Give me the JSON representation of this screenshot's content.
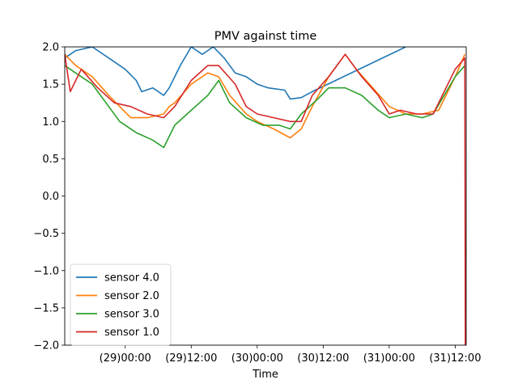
{
  "chart_data": {
    "type": "line",
    "title": "PMV against  time",
    "xlabel": "Time",
    "ylabel": "",
    "ylim": [
      -2.0,
      2.0
    ],
    "xlim": [
      "2023-01-28T13:00",
      "2023-01-31T14:00"
    ],
    "x_tick_labels": [
      "(29)00:00",
      "(29)12:00",
      "(30)00:00",
      "(30)12:00",
      "(31)00:00",
      "(31)12:00"
    ],
    "x_ticks": [
      "2023-01-29T00:00",
      "2023-01-29T12:00",
      "2023-01-30T00:00",
      "2023-01-30T12:00",
      "2023-01-31T00:00",
      "2023-01-31T12:00"
    ],
    "y_tick_labels": [
      "2.0",
      "1.5",
      "1.0",
      "0.5",
      "0.0",
      "−0.5",
      "−1.0",
      "−1.5",
      "−2.0"
    ],
    "y_ticks": [
      2.0,
      1.5,
      1.0,
      0.5,
      0.0,
      -0.5,
      -1.0,
      -1.5,
      -2.0
    ],
    "grid": false,
    "legend_position": "lower-left",
    "series": [
      {
        "name": "sensor 4.0",
        "color": "#1f77b4",
        "x": [
          "2023-01-28T13:00",
          "2023-01-28T15:00",
          "2023-01-28T18:00",
          "2023-01-28T21:00",
          "2023-01-29T00:00",
          "2023-01-29T02:00",
          "2023-01-29T03:00",
          "2023-01-29T05:00",
          "2023-01-29T07:00",
          "2023-01-29T08:00",
          "2023-01-29T10:00",
          "2023-01-29T12:00",
          "2023-01-29T14:00",
          "2023-01-29T16:00",
          "2023-01-29T18:00",
          "2023-01-29T20:00",
          "2023-01-29T22:00",
          "2023-01-30T00:00",
          "2023-01-30T02:00",
          "2023-01-30T05:00",
          "2023-01-30T06:00",
          "2023-01-30T08:00",
          "2023-01-30T10:00",
          "2023-01-31T03:00"
        ],
        "y": [
          1.85,
          1.95,
          2.0,
          1.85,
          1.7,
          1.55,
          1.4,
          1.45,
          1.35,
          1.45,
          1.75,
          2.0,
          1.9,
          2.0,
          1.85,
          1.65,
          1.6,
          1.5,
          1.45,
          1.42,
          1.3,
          1.32,
          1.4,
          2.0
        ]
      },
      {
        "name": "sensor 2.0",
        "color": "#ff7f0e",
        "x": [
          "2023-01-28T13:00",
          "2023-01-28T15:00",
          "2023-01-28T18:00",
          "2023-01-28T21:00",
          "2023-01-28T23:00",
          "2023-01-29T01:00",
          "2023-01-29T04:00",
          "2023-01-29T07:00",
          "2023-01-29T08:00",
          "2023-01-29T09:00",
          "2023-01-29T12:00",
          "2023-01-29T15:00",
          "2023-01-29T17:00",
          "2023-01-29T19:00",
          "2023-01-29T22:00",
          "2023-01-30T00:00",
          "2023-01-30T03:00",
          "2023-01-30T06:00",
          "2023-01-30T08:00",
          "2023-01-30T10:00",
          "2023-01-30T13:00",
          "2023-01-30T16:00",
          "2023-01-30T18:00",
          "2023-01-30T21:00",
          "2023-01-31T00:00",
          "2023-01-31T03:00",
          "2023-01-31T06:00",
          "2023-01-31T09:00",
          "2023-01-31T12:00",
          "2023-01-31T13:45"
        ],
        "y": [
          1.9,
          1.75,
          1.6,
          1.35,
          1.2,
          1.05,
          1.05,
          1.1,
          1.2,
          1.25,
          1.5,
          1.65,
          1.6,
          1.35,
          1.1,
          1.0,
          0.9,
          0.78,
          0.9,
          1.2,
          1.6,
          1.9,
          1.7,
          1.45,
          1.2,
          1.1,
          1.1,
          1.15,
          1.6,
          1.9
        ]
      },
      {
        "name": "sensor 3.0",
        "color": "#2ca02c",
        "x": [
          "2023-01-28T13:00",
          "2023-01-28T15:00",
          "2023-01-28T18:00",
          "2023-01-28T20:00",
          "2023-01-28T23:00",
          "2023-01-29T02:00",
          "2023-01-29T05:00",
          "2023-01-29T07:00",
          "2023-01-29T09:00",
          "2023-01-29T12:00",
          "2023-01-29T15:00",
          "2023-01-29T17:00",
          "2023-01-29T19:00",
          "2023-01-29T22:00",
          "2023-01-30T01:00",
          "2023-01-30T04:00",
          "2023-01-30T06:00",
          "2023-01-30T08:00",
          "2023-01-30T11:00",
          "2023-01-30T13:00",
          "2023-01-30T16:00",
          "2023-01-30T19:00",
          "2023-01-30T22:00",
          "2023-01-31T00:00",
          "2023-01-31T03:00",
          "2023-01-31T06:00",
          "2023-01-31T08:00",
          "2023-01-31T10:00",
          "2023-01-31T12:00",
          "2023-01-31T13:45"
        ],
        "y": [
          1.75,
          1.65,
          1.5,
          1.3,
          1.0,
          0.85,
          0.75,
          0.65,
          0.95,
          1.15,
          1.35,
          1.55,
          1.25,
          1.05,
          0.95,
          0.95,
          0.9,
          1.1,
          1.3,
          1.45,
          1.45,
          1.35,
          1.15,
          1.05,
          1.1,
          1.05,
          1.1,
          1.35,
          1.6,
          1.75
        ]
      },
      {
        "name": "sensor 1.0",
        "color": "#d62728",
        "x": [
          "2023-01-28T13:00",
          "2023-01-28T14:00",
          "2023-01-28T16:00",
          "2023-01-28T19:00",
          "2023-01-28T22:00",
          "2023-01-29T01:00",
          "2023-01-29T04:00",
          "2023-01-29T07:00",
          "2023-01-29T09:00",
          "2023-01-29T12:00",
          "2023-01-29T15:00",
          "2023-01-29T17:00",
          "2023-01-29T20:00",
          "2023-01-29T22:00",
          "2023-01-30T00:00",
          "2023-01-30T03:00",
          "2023-01-30T06:00",
          "2023-01-30T08:00",
          "2023-01-30T10:00",
          "2023-01-30T13:00",
          "2023-01-30T16:00",
          "2023-01-30T19:00",
          "2023-01-30T22:00",
          "2023-01-31T00:00",
          "2023-01-31T02:00",
          "2023-01-31T05:00",
          "2023-01-31T08:00",
          "2023-01-31T10:00",
          "2023-01-31T12:00",
          "2023-01-31T13:45",
          "2023-01-31T13:50"
        ],
        "y": [
          1.9,
          1.4,
          1.7,
          1.45,
          1.25,
          1.2,
          1.1,
          1.05,
          1.2,
          1.55,
          1.75,
          1.75,
          1.5,
          1.2,
          1.1,
          1.05,
          1.0,
          1.0,
          1.35,
          1.6,
          1.9,
          1.6,
          1.35,
          1.1,
          1.15,
          1.1,
          1.1,
          1.4,
          1.7,
          1.85,
          -2.0
        ]
      }
    ]
  }
}
